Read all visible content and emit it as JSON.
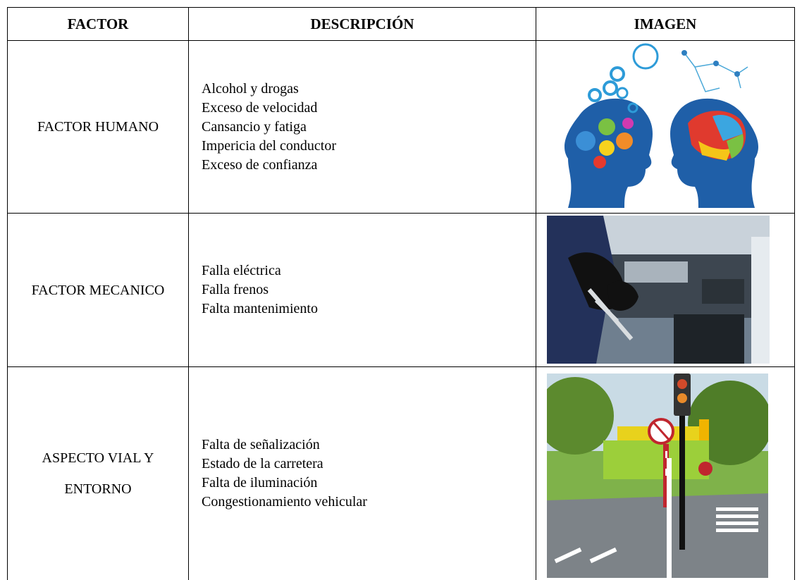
{
  "table": {
    "columns": [
      "FACTOR",
      "DESCRIPCIÓN",
      "IMAGEN"
    ],
    "rows": [
      {
        "factor": "FACTOR HUMANO",
        "description": [
          "Alcohol y drogas",
          "Exceso de velocidad",
          "Cansancio y fatiga",
          "Impericia del conductor",
          "Exceso de confianza"
        ]
      },
      {
        "factor": "FACTOR MECANICO",
        "description": [
          "Falla eléctrica",
          "Falla frenos",
          "Falta mantenimiento"
        ]
      },
      {
        "factor": "ASPECTO VIAL Y ENTORNO",
        "description": [
          "Falta de señalización",
          "Estado de la carretera",
          "Falta de iluminación",
          "Congestionamiento vehicular"
        ]
      }
    ]
  }
}
